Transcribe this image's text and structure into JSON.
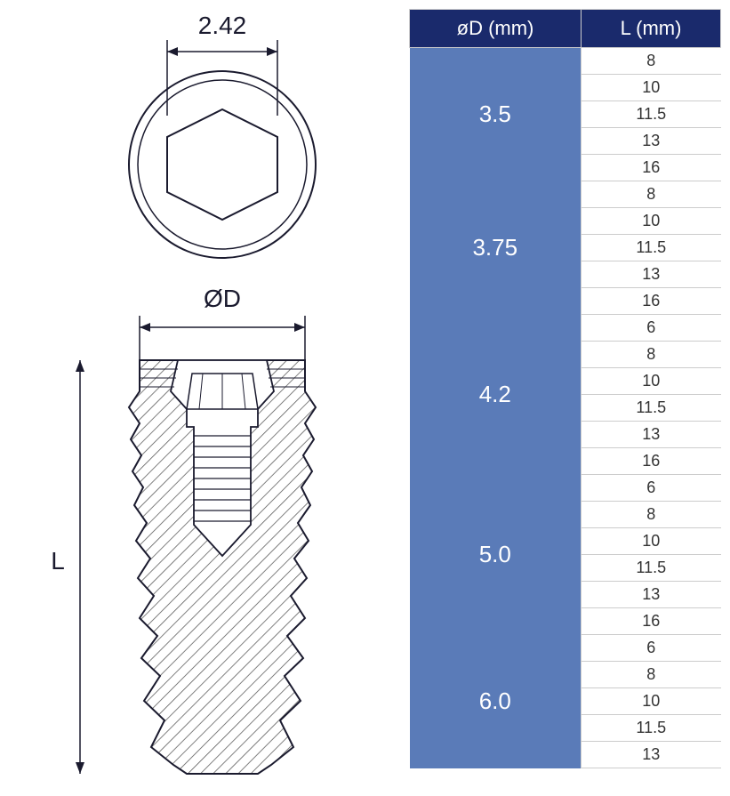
{
  "diagram": {
    "hexWidth": "2.42",
    "diameterLabel": "ØD",
    "lengthLabel": "L",
    "strokeColor": "#1a1a2e",
    "hatchColor": "#444"
  },
  "table": {
    "header": {
      "d": "øD (mm)",
      "l": "L (mm)"
    },
    "headerBg": "#1a2a6c",
    "dCellBg": "#5a7bb8",
    "groups": [
      {
        "d": "3.5",
        "lengths": [
          "8",
          "10",
          "11.5",
          "13",
          "16"
        ]
      },
      {
        "d": "3.75",
        "lengths": [
          "8",
          "10",
          "11.5",
          "13",
          "16"
        ]
      },
      {
        "d": "4.2",
        "lengths": [
          "6",
          "8",
          "10",
          "11.5",
          "13",
          "16"
        ]
      },
      {
        "d": "5.0",
        "lengths": [
          "6",
          "8",
          "10",
          "11.5",
          "13",
          "16"
        ]
      },
      {
        "d": "6.0",
        "lengths": [
          "6",
          "8",
          "10",
          "11.5",
          "13"
        ]
      }
    ]
  }
}
